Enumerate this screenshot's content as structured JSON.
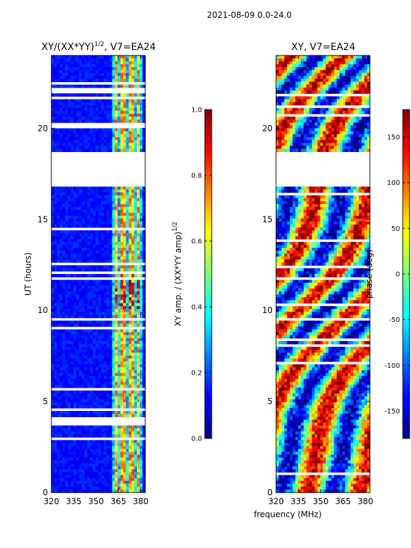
{
  "suptitle": "2021-08-09 0.0-24.0",
  "chart_data": [
    {
      "type": "heatmap",
      "title_main": "XY/(XX*YY)",
      "title_sup": "1/2",
      "title_tail": ", V7=EA24",
      "xlabel": "",
      "ylabel": "UT (hours)",
      "xlim": [
        320,
        383
      ],
      "ylim": [
        0,
        24
      ],
      "xticks": [
        320,
        335,
        350,
        365,
        380
      ],
      "yticks": [
        0,
        5,
        10,
        15,
        20
      ],
      "flagged_gap_hours": [
        18.8,
        16.8
      ],
      "colorscale": "jet",
      "colorbar": {
        "label_main": "XY amp. / (XX*YY amp)",
        "label_sup": "1/2",
        "range": [
          0.0,
          1.0
        ],
        "ticks": [
          "0.0",
          "0.2",
          "0.4",
          "0.6",
          "0.8",
          "1.0"
        ]
      }
    },
    {
      "type": "heatmap",
      "title_main": "XY, V7=EA24",
      "xlabel": "frequency (MHz)",
      "ylabel": "",
      "xlim": [
        320,
        383
      ],
      "ylim": [
        0,
        24
      ],
      "xticks": [
        320,
        335,
        350,
        365,
        380
      ],
      "yticks": [
        0,
        5,
        10,
        15,
        20
      ],
      "flagged_gap_hours": [
        18.8,
        16.8
      ],
      "colorscale": "jet",
      "colorbar": {
        "label_main": "phase (deg)",
        "range": [
          -180,
          180
        ],
        "ticks": [
          "-150",
          "-100",
          "-50",
          "0",
          "50",
          "100",
          "150"
        ]
      }
    }
  ]
}
